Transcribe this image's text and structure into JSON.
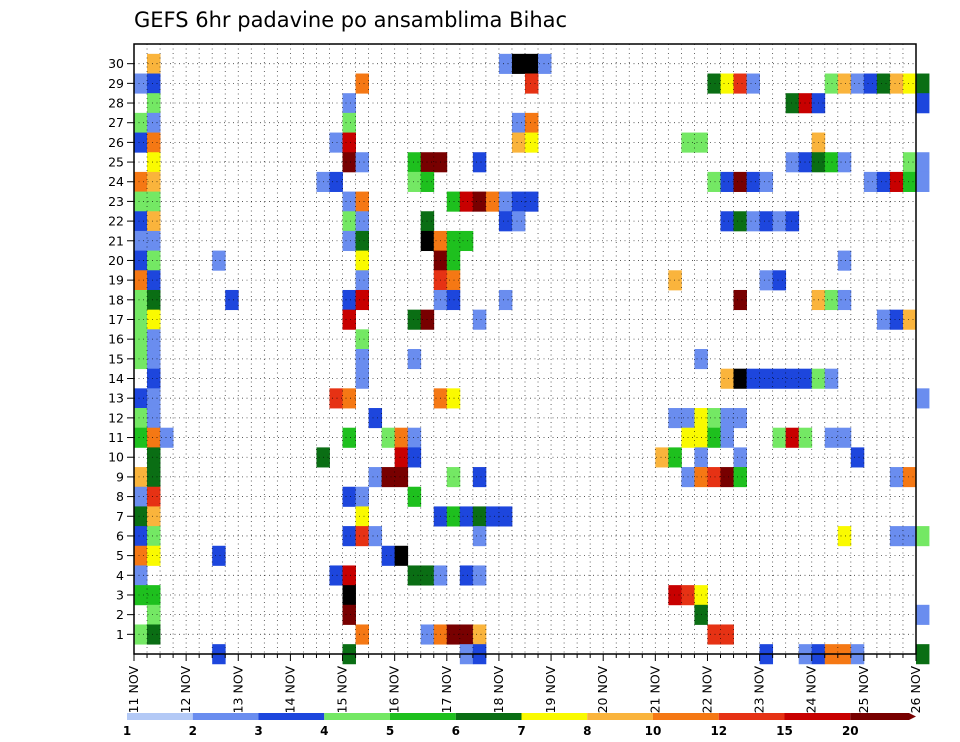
{
  "chart_data": {
    "type": "heatmap",
    "title": "GEFS 6hr padavine po ansamblima Bihac",
    "xlabel": "",
    "ylabel": "",
    "x_tick_labels": [
      "11 NOV",
      "12 NOV",
      "13 NOV",
      "14 NOV",
      "15 NOV",
      "16 NOV",
      "17 NOV",
      "18 NOV",
      "19 NOV",
      "20 NOV",
      "21 NOV",
      "22 NOV",
      "23 NOV",
      "24 NOV",
      "25 NOV",
      "26 NOV"
    ],
    "y_tick_labels": [
      "1",
      "2",
      "3",
      "4",
      "5",
      "6",
      "7",
      "8",
      "9",
      "10",
      "11",
      "12",
      "13",
      "14",
      "15",
      "16",
      "17",
      "18",
      "19",
      "20",
      "21",
      "22",
      "23",
      "24",
      "25",
      "26",
      "27",
      "28",
      "29",
      "30"
    ],
    "x_range": [
      "11 NOV 00Z",
      "26 NOV 00Z"
    ],
    "time_step_hours": 6,
    "y_range": [
      1,
      30
    ],
    "grid": true,
    "colorbar": {
      "position": "bottom",
      "levels": [
        "1",
        "2",
        "3",
        "4",
        "5",
        "6",
        "7",
        "8",
        "10",
        "12",
        "15",
        "20"
      ],
      "colors": [
        "#b3c9f6",
        "#6a8def",
        "#1d46dd",
        "#74e864",
        "#1ec01e",
        "#0a6e14",
        "#fafa00",
        "#fab43c",
        "#f57814",
        "#e63214",
        "#c80000",
        "#780000"
      ]
    },
    "cells": [
      {
        "m": 30,
        "t": 1,
        "b": 7
      },
      {
        "m": 30,
        "t": 28,
        "b": 1
      },
      {
        "m": 30,
        "t": 29,
        "b": 12
      },
      {
        "m": 30,
        "t": 30,
        "b": 12
      },
      {
        "m": 30,
        "t": 31,
        "b": 1
      },
      {
        "m": 29,
        "t": 0,
        "b": 1
      },
      {
        "m": 29,
        "t": 1,
        "b": 2
      },
      {
        "m": 29,
        "t": 17,
        "b": 8
      },
      {
        "m": 29,
        "t": 30,
        "b": 9
      },
      {
        "m": 29,
        "t": 44,
        "b": 5
      },
      {
        "m": 29,
        "t": 45,
        "b": 6
      },
      {
        "m": 29,
        "t": 46,
        "b": 9
      },
      {
        "m": 29,
        "t": 47,
        "b": 1
      },
      {
        "m": 29,
        "t": 53,
        "b": 3
      },
      {
        "m": 29,
        "t": 54,
        "b": 7
      },
      {
        "m": 29,
        "t": 55,
        "b": 1
      },
      {
        "m": 29,
        "t": 56,
        "b": 2
      },
      {
        "m": 29,
        "t": 57,
        "b": 5
      },
      {
        "m": 29,
        "t": 58,
        "b": 7
      },
      {
        "m": 29,
        "t": 59,
        "b": 6
      },
      {
        "m": 29,
        "t": 60,
        "b": 5
      },
      {
        "m": 28,
        "t": 1,
        "b": 3
      },
      {
        "m": 28,
        "t": 16,
        "b": 1
      },
      {
        "m": 28,
        "t": 50,
        "b": 5
      },
      {
        "m": 28,
        "t": 51,
        "b": 10
      },
      {
        "m": 28,
        "t": 52,
        "b": 2
      },
      {
        "m": 28,
        "t": 60,
        "b": 2
      },
      {
        "m": 27,
        "t": 0,
        "b": 3
      },
      {
        "m": 27,
        "t": 1,
        "b": 1
      },
      {
        "m": 27,
        "t": 16,
        "b": 3
      },
      {
        "m": 27,
        "t": 29,
        "b": 1
      },
      {
        "m": 27,
        "t": 30,
        "b": 8
      },
      {
        "m": 26,
        "t": 0,
        "b": 2
      },
      {
        "m": 26,
        "t": 1,
        "b": 8
      },
      {
        "m": 26,
        "t": 15,
        "b": 1
      },
      {
        "m": 26,
        "t": 16,
        "b": 10
      },
      {
        "m": 26,
        "t": 29,
        "b": 7
      },
      {
        "m": 26,
        "t": 30,
        "b": 6
      },
      {
        "m": 26,
        "t": 42,
        "b": 3
      },
      {
        "m": 26,
        "t": 43,
        "b": 3
      },
      {
        "m": 26,
        "t": 52,
        "b": 7
      },
      {
        "m": 25,
        "t": 1,
        "b": 6
      },
      {
        "m": 25,
        "t": 16,
        "b": 11
      },
      {
        "m": 25,
        "t": 17,
        "b": 1
      },
      {
        "m": 25,
        "t": 21,
        "b": 4
      },
      {
        "m": 25,
        "t": 22,
        "b": 11
      },
      {
        "m": 25,
        "t": 23,
        "b": 11
      },
      {
        "m": 25,
        "t": 26,
        "b": 2
      },
      {
        "m": 25,
        "t": 50,
        "b": 1
      },
      {
        "m": 25,
        "t": 51,
        "b": 2
      },
      {
        "m": 25,
        "t": 52,
        "b": 5
      },
      {
        "m": 25,
        "t": 53,
        "b": 4
      },
      {
        "m": 25,
        "t": 54,
        "b": 1
      },
      {
        "m": 25,
        "t": 59,
        "b": 3
      },
      {
        "m": 25,
        "t": 60,
        "b": 1
      },
      {
        "m": 24,
        "t": 0,
        "b": 8
      },
      {
        "m": 24,
        "t": 1,
        "b": 7
      },
      {
        "m": 24,
        "t": 14,
        "b": 1
      },
      {
        "m": 24,
        "t": 15,
        "b": 2
      },
      {
        "m": 24,
        "t": 21,
        "b": 3
      },
      {
        "m": 24,
        "t": 22,
        "b": 4
      },
      {
        "m": 24,
        "t": 44,
        "b": 3
      },
      {
        "m": 24,
        "t": 45,
        "b": 2
      },
      {
        "m": 24,
        "t": 46,
        "b": 11
      },
      {
        "m": 24,
        "t": 47,
        "b": 2
      },
      {
        "m": 24,
        "t": 48,
        "b": 1
      },
      {
        "m": 24,
        "t": 56,
        "b": 1
      },
      {
        "m": 24,
        "t": 57,
        "b": 2
      },
      {
        "m": 24,
        "t": 58,
        "b": 10
      },
      {
        "m": 24,
        "t": 59,
        "b": 4
      },
      {
        "m": 24,
        "t": 60,
        "b": 1
      },
      {
        "m": 23,
        "t": 0,
        "b": 3
      },
      {
        "m": 23,
        "t": 1,
        "b": 3
      },
      {
        "m": 23,
        "t": 16,
        "b": 1
      },
      {
        "m": 23,
        "t": 17,
        "b": 8
      },
      {
        "m": 23,
        "t": 24,
        "b": 4
      },
      {
        "m": 23,
        "t": 25,
        "b": 10
      },
      {
        "m": 23,
        "t": 26,
        "b": 11
      },
      {
        "m": 23,
        "t": 27,
        "b": 8
      },
      {
        "m": 23,
        "t": 28,
        "b": 1
      },
      {
        "m": 23,
        "t": 29,
        "b": 2
      },
      {
        "m": 23,
        "t": 30,
        "b": 2
      },
      {
        "m": 22,
        "t": 0,
        "b": 2
      },
      {
        "m": 22,
        "t": 1,
        "b": 7
      },
      {
        "m": 22,
        "t": 16,
        "b": 3
      },
      {
        "m": 22,
        "t": 17,
        "b": 1
      },
      {
        "m": 22,
        "t": 22,
        "b": 5
      },
      {
        "m": 22,
        "t": 28,
        "b": 2
      },
      {
        "m": 22,
        "t": 29,
        "b": 1
      },
      {
        "m": 22,
        "t": 45,
        "b": 2
      },
      {
        "m": 22,
        "t": 46,
        "b": 5
      },
      {
        "m": 22,
        "t": 47,
        "b": 1
      },
      {
        "m": 22,
        "t": 48,
        "b": 2
      },
      {
        "m": 22,
        "t": 49,
        "b": 1
      },
      {
        "m": 22,
        "t": 50,
        "b": 2
      },
      {
        "m": 21,
        "t": 0,
        "b": 1
      },
      {
        "m": 21,
        "t": 1,
        "b": 1
      },
      {
        "m": 21,
        "t": 16,
        "b": 1
      },
      {
        "m": 21,
        "t": 17,
        "b": 5
      },
      {
        "m": 21,
        "t": 22,
        "b": 12
      },
      {
        "m": 21,
        "t": 23,
        "b": 8
      },
      {
        "m": 21,
        "t": 24,
        "b": 4
      },
      {
        "m": 21,
        "t": 25,
        "b": 4
      },
      {
        "m": 20,
        "t": 0,
        "b": 2
      },
      {
        "m": 20,
        "t": 1,
        "b": 3
      },
      {
        "m": 20,
        "t": 6,
        "b": 1
      },
      {
        "m": 20,
        "t": 17,
        "b": 6
      },
      {
        "m": 20,
        "t": 23,
        "b": 11
      },
      {
        "m": 20,
        "t": 24,
        "b": 4
      },
      {
        "m": 20,
        "t": 54,
        "b": 1
      },
      {
        "m": 19,
        "t": 0,
        "b": 8
      },
      {
        "m": 19,
        "t": 1,
        "b": 2
      },
      {
        "m": 19,
        "t": 17,
        "b": 1
      },
      {
        "m": 19,
        "t": 23,
        "b": 9
      },
      {
        "m": 19,
        "t": 24,
        "b": 8
      },
      {
        "m": 19,
        "t": 41,
        "b": 7
      },
      {
        "m": 19,
        "t": 48,
        "b": 1
      },
      {
        "m": 19,
        "t": 49,
        "b": 2
      },
      {
        "m": 18,
        "t": 0,
        "b": 3
      },
      {
        "m": 18,
        "t": 1,
        "b": 5
      },
      {
        "m": 18,
        "t": 7,
        "b": 2
      },
      {
        "m": 18,
        "t": 16,
        "b": 2
      },
      {
        "m": 18,
        "t": 17,
        "b": 10
      },
      {
        "m": 18,
        "t": 23,
        "b": 1
      },
      {
        "m": 18,
        "t": 24,
        "b": 2
      },
      {
        "m": 18,
        "t": 28,
        "b": 1
      },
      {
        "m": 18,
        "t": 46,
        "b": 11
      },
      {
        "m": 18,
        "t": 52,
        "b": 7
      },
      {
        "m": 18,
        "t": 53,
        "b": 3
      },
      {
        "m": 18,
        "t": 54,
        "b": 1
      },
      {
        "m": 17,
        "t": 0,
        "b": 3
      },
      {
        "m": 17,
        "t": 1,
        "b": 6
      },
      {
        "m": 17,
        "t": 16,
        "b": 10
      },
      {
        "m": 17,
        "t": 21,
        "b": 5
      },
      {
        "m": 17,
        "t": 22,
        "b": 11
      },
      {
        "m": 17,
        "t": 26,
        "b": 1
      },
      {
        "m": 17,
        "t": 57,
        "b": 1
      },
      {
        "m": 17,
        "t": 58,
        "b": 2
      },
      {
        "m": 17,
        "t": 59,
        "b": 7
      },
      {
        "m": 16,
        "t": 0,
        "b": 3
      },
      {
        "m": 16,
        "t": 1,
        "b": 1
      },
      {
        "m": 16,
        "t": 17,
        "b": 3
      },
      {
        "m": 15,
        "t": 0,
        "b": 3
      },
      {
        "m": 15,
        "t": 1,
        "b": 1
      },
      {
        "m": 15,
        "t": 17,
        "b": 1
      },
      {
        "m": 15,
        "t": 21,
        "b": 1
      },
      {
        "m": 15,
        "t": 43,
        "b": 1
      },
      {
        "m": 14,
        "t": 1,
        "b": 2
      },
      {
        "m": 14,
        "t": 17,
        "b": 1
      },
      {
        "m": 14,
        "t": 45,
        "b": 7
      },
      {
        "m": 14,
        "t": 46,
        "b": 12
      },
      {
        "m": 14,
        "t": 47,
        "b": 2
      },
      {
        "m": 14,
        "t": 48,
        "b": 2
      },
      {
        "m": 14,
        "t": 49,
        "b": 2
      },
      {
        "m": 14,
        "t": 50,
        "b": 2
      },
      {
        "m": 14,
        "t": 51,
        "b": 2
      },
      {
        "m": 14,
        "t": 52,
        "b": 3
      },
      {
        "m": 14,
        "t": 53,
        "b": 1
      },
      {
        "m": 13,
        "t": 0,
        "b": 2
      },
      {
        "m": 13,
        "t": 1,
        "b": 1
      },
      {
        "m": 13,
        "t": 15,
        "b": 9
      },
      {
        "m": 13,
        "t": 16,
        "b": 8
      },
      {
        "m": 13,
        "t": 23,
        "b": 8
      },
      {
        "m": 13,
        "t": 24,
        "b": 6
      },
      {
        "m": 13,
        "t": 60,
        "b": 1
      },
      {
        "m": 12,
        "t": 0,
        "b": 3
      },
      {
        "m": 12,
        "t": 1,
        "b": 1
      },
      {
        "m": 12,
        "t": 18,
        "b": 2
      },
      {
        "m": 12,
        "t": 41,
        "b": 1
      },
      {
        "m": 12,
        "t": 42,
        "b": 1
      },
      {
        "m": 12,
        "t": 43,
        "b": 6
      },
      {
        "m": 12,
        "t": 44,
        "b": 3
      },
      {
        "m": 12,
        "t": 45,
        "b": 1
      },
      {
        "m": 12,
        "t": 46,
        "b": 1
      },
      {
        "m": 11,
        "t": 0,
        "b": 4
      },
      {
        "m": 11,
        "t": 1,
        "b": 8
      },
      {
        "m": 11,
        "t": 2,
        "b": 1
      },
      {
        "m": 11,
        "t": 16,
        "b": 4
      },
      {
        "m": 11,
        "t": 19,
        "b": 3
      },
      {
        "m": 11,
        "t": 20,
        "b": 8
      },
      {
        "m": 11,
        "t": 21,
        "b": 1
      },
      {
        "m": 11,
        "t": 42,
        "b": 6
      },
      {
        "m": 11,
        "t": 43,
        "b": 6
      },
      {
        "m": 11,
        "t": 44,
        "b": 4
      },
      {
        "m": 11,
        "t": 45,
        "b": 1
      },
      {
        "m": 11,
        "t": 49,
        "b": 3
      },
      {
        "m": 11,
        "t": 50,
        "b": 10
      },
      {
        "m": 11,
        "t": 51,
        "b": 3
      },
      {
        "m": 11,
        "t": 53,
        "b": 1
      },
      {
        "m": 11,
        "t": 54,
        "b": 1
      },
      {
        "m": 10,
        "t": 1,
        "b": 5
      },
      {
        "m": 10,
        "t": 14,
        "b": 5
      },
      {
        "m": 10,
        "t": 20,
        "b": 10
      },
      {
        "m": 10,
        "t": 21,
        "b": 2
      },
      {
        "m": 10,
        "t": 40,
        "b": 7
      },
      {
        "m": 10,
        "t": 41,
        "b": 4
      },
      {
        "m": 10,
        "t": 43,
        "b": 1
      },
      {
        "m": 10,
        "t": 46,
        "b": 1
      },
      {
        "m": 10,
        "t": 55,
        "b": 2
      },
      {
        "m": 9,
        "t": 0,
        "b": 7
      },
      {
        "m": 9,
        "t": 1,
        "b": 5
      },
      {
        "m": 9,
        "t": 18,
        "b": 1
      },
      {
        "m": 9,
        "t": 19,
        "b": 11
      },
      {
        "m": 9,
        "t": 20,
        "b": 11
      },
      {
        "m": 9,
        "t": 24,
        "b": 3
      },
      {
        "m": 9,
        "t": 26,
        "b": 2
      },
      {
        "m": 9,
        "t": 42,
        "b": 1
      },
      {
        "m": 9,
        "t": 43,
        "b": 8
      },
      {
        "m": 9,
        "t": 44,
        "b": 9
      },
      {
        "m": 9,
        "t": 45,
        "b": 11
      },
      {
        "m": 9,
        "t": 46,
        "b": 4
      },
      {
        "m": 9,
        "t": 58,
        "b": 1
      },
      {
        "m": 9,
        "t": 59,
        "b": 8
      },
      {
        "m": 8,
        "t": 0,
        "b": 1
      },
      {
        "m": 8,
        "t": 1,
        "b": 9
      },
      {
        "m": 8,
        "t": 16,
        "b": 2
      },
      {
        "m": 8,
        "t": 17,
        "b": 1
      },
      {
        "m": 8,
        "t": 21,
        "b": 4
      },
      {
        "m": 7,
        "t": 0,
        "b": 5
      },
      {
        "m": 7,
        "t": 1,
        "b": 7
      },
      {
        "m": 7,
        "t": 17,
        "b": 6
      },
      {
        "m": 7,
        "t": 23,
        "b": 2
      },
      {
        "m": 7,
        "t": 24,
        "b": 4
      },
      {
        "m": 7,
        "t": 25,
        "b": 2
      },
      {
        "m": 7,
        "t": 26,
        "b": 5
      },
      {
        "m": 7,
        "t": 27,
        "b": 2
      },
      {
        "m": 7,
        "t": 28,
        "b": 2
      },
      {
        "m": 6,
        "t": 0,
        "b": 2
      },
      {
        "m": 6,
        "t": 1,
        "b": 3
      },
      {
        "m": 6,
        "t": 16,
        "b": 2
      },
      {
        "m": 6,
        "t": 17,
        "b": 9
      },
      {
        "m": 6,
        "t": 18,
        "b": 1
      },
      {
        "m": 6,
        "t": 26,
        "b": 1
      },
      {
        "m": 6,
        "t": 54,
        "b": 6
      },
      {
        "m": 6,
        "t": 58,
        "b": 1
      },
      {
        "m": 6,
        "t": 59,
        "b": 1
      },
      {
        "m": 6,
        "t": 60,
        "b": 3
      },
      {
        "m": 5,
        "t": 0,
        "b": 8
      },
      {
        "m": 5,
        "t": 1,
        "b": 6
      },
      {
        "m": 5,
        "t": 6,
        "b": 2
      },
      {
        "m": 5,
        "t": 19,
        "b": 2
      },
      {
        "m": 5,
        "t": 20,
        "b": 12
      },
      {
        "m": 4,
        "t": 0,
        "b": 1
      },
      {
        "m": 4,
        "t": 15,
        "b": 2
      },
      {
        "m": 4,
        "t": 16,
        "b": 10
      },
      {
        "m": 4,
        "t": 21,
        "b": 5
      },
      {
        "m": 4,
        "t": 22,
        "b": 5
      },
      {
        "m": 4,
        "t": 23,
        "b": 1
      },
      {
        "m": 4,
        "t": 25,
        "b": 2
      },
      {
        "m": 4,
        "t": 26,
        "b": 1
      },
      {
        "m": 3,
        "t": 0,
        "b": 4
      },
      {
        "m": 3,
        "t": 1,
        "b": 4
      },
      {
        "m": 3,
        "t": 16,
        "b": 12
      },
      {
        "m": 3,
        "t": 41,
        "b": 10
      },
      {
        "m": 3,
        "t": 42,
        "b": 9
      },
      {
        "m": 3,
        "t": 43,
        "b": 6
      },
      {
        "m": 2,
        "t": 1,
        "b": 3
      },
      {
        "m": 2,
        "t": 16,
        "b": 11
      },
      {
        "m": 2,
        "t": 43,
        "b": 5
      },
      {
        "m": 2,
        "t": 60,
        "b": 1
      },
      {
        "m": 1,
        "t": 0,
        "b": 3
      },
      {
        "m": 1,
        "t": 1,
        "b": 5
      },
      {
        "m": 1,
        "t": 17,
        "b": 8
      },
      {
        "m": 1,
        "t": 22,
        "b": 1
      },
      {
        "m": 1,
        "t": 23,
        "b": 8
      },
      {
        "m": 1,
        "t": 24,
        "b": 11
      },
      {
        "m": 1,
        "t": 25,
        "b": 11
      },
      {
        "m": 1,
        "t": 26,
        "b": 7
      },
      {
        "m": 1,
        "t": 44,
        "b": 9
      },
      {
        "m": 1,
        "t": 45,
        "b": 9
      },
      {
        "m": 0,
        "t": 6,
        "b": 2
      },
      {
        "m": 0,
        "t": 16,
        "b": 5
      },
      {
        "m": 0,
        "t": 25,
        "b": 1
      },
      {
        "m": 0,
        "t": 26,
        "b": 2
      },
      {
        "m": 0,
        "t": 48,
        "b": 2
      },
      {
        "m": 0,
        "t": 51,
        "b": 1
      },
      {
        "m": 0,
        "t": 52,
        "b": 2
      },
      {
        "m": 0,
        "t": 53,
        "b": 8
      },
      {
        "m": 0,
        "t": 54,
        "b": 8
      },
      {
        "m": 0,
        "t": 55,
        "b": 1
      },
      {
        "m": 0,
        "t": 60,
        "b": 5
      }
    ]
  }
}
